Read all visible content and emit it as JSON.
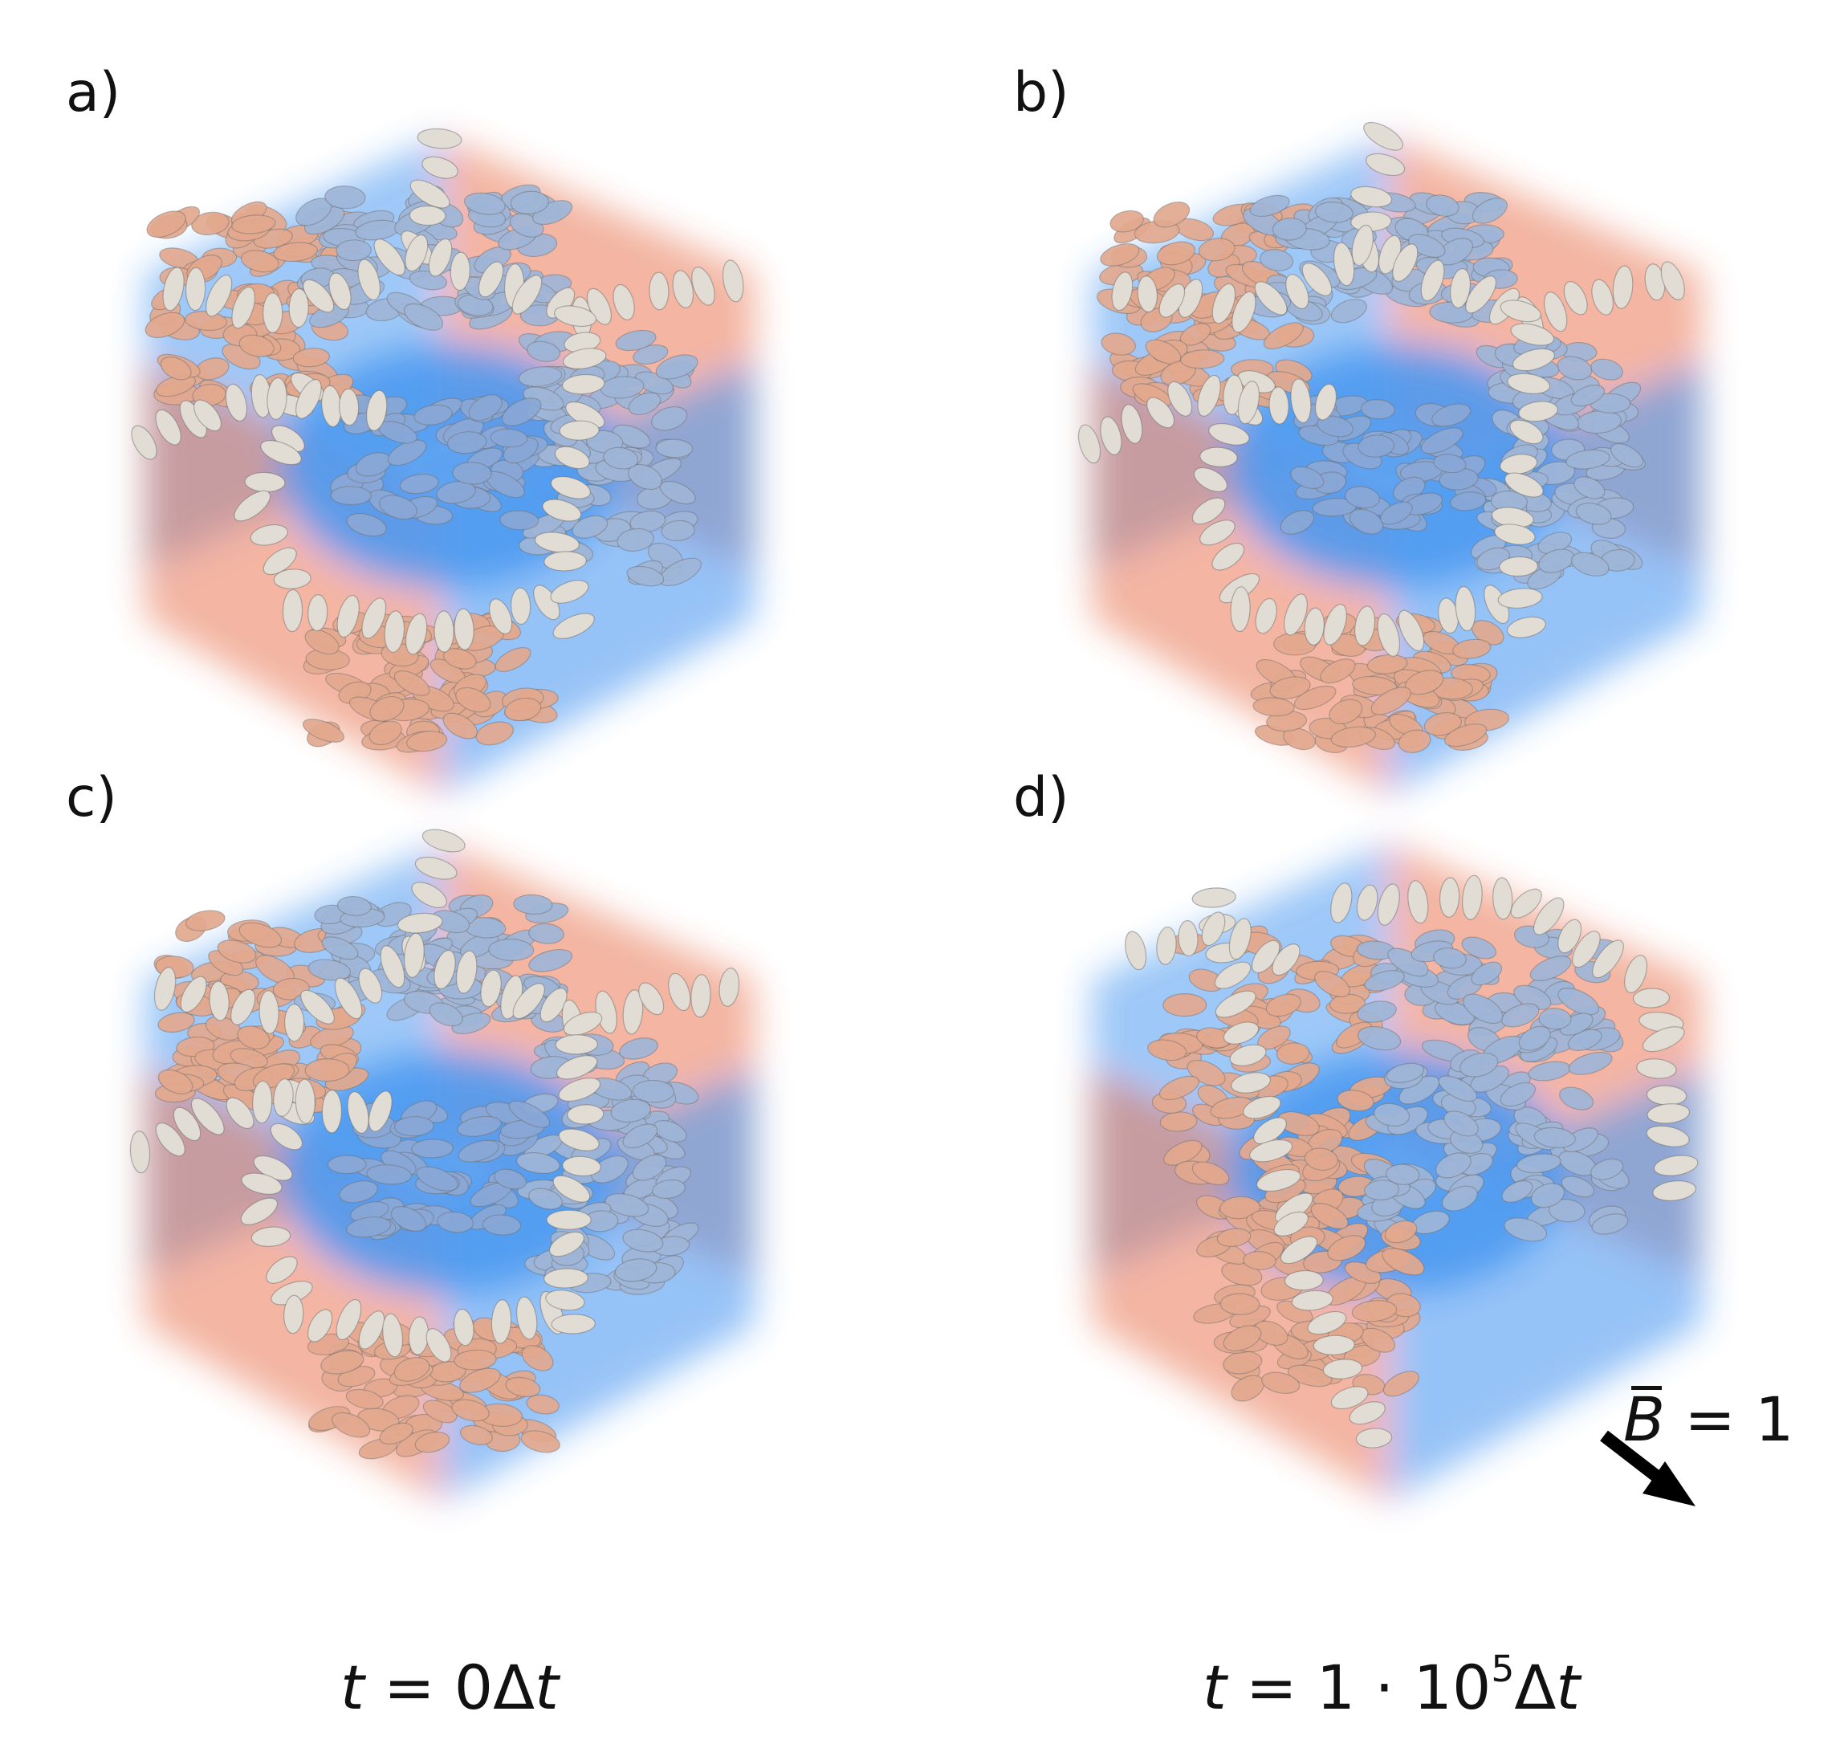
{
  "panels": [
    {
      "id": "a",
      "label": "a)"
    },
    {
      "id": "b",
      "label": "b)"
    },
    {
      "id": "c",
      "label": "c)"
    },
    {
      "id": "d",
      "label": "d)"
    }
  ],
  "time_labels": {
    "left": {
      "t": "t",
      "eq": " = 0Δ",
      "dt": "t"
    },
    "right": {
      "t": "t",
      "eq": " = 1 · 10",
      "exp": "5",
      "delta": "Δ",
      "dt": "t"
    }
  },
  "field": {
    "symbol": "B",
    "eq": " = 1"
  },
  "colors": {
    "blue_face": "#3a8ff0",
    "orange_face": "#e86a45",
    "blue_particle": "#9fb6d8",
    "orange_particle": "#e3a98f",
    "white_particle": "#e2ddd4",
    "arrow": "#000000"
  }
}
